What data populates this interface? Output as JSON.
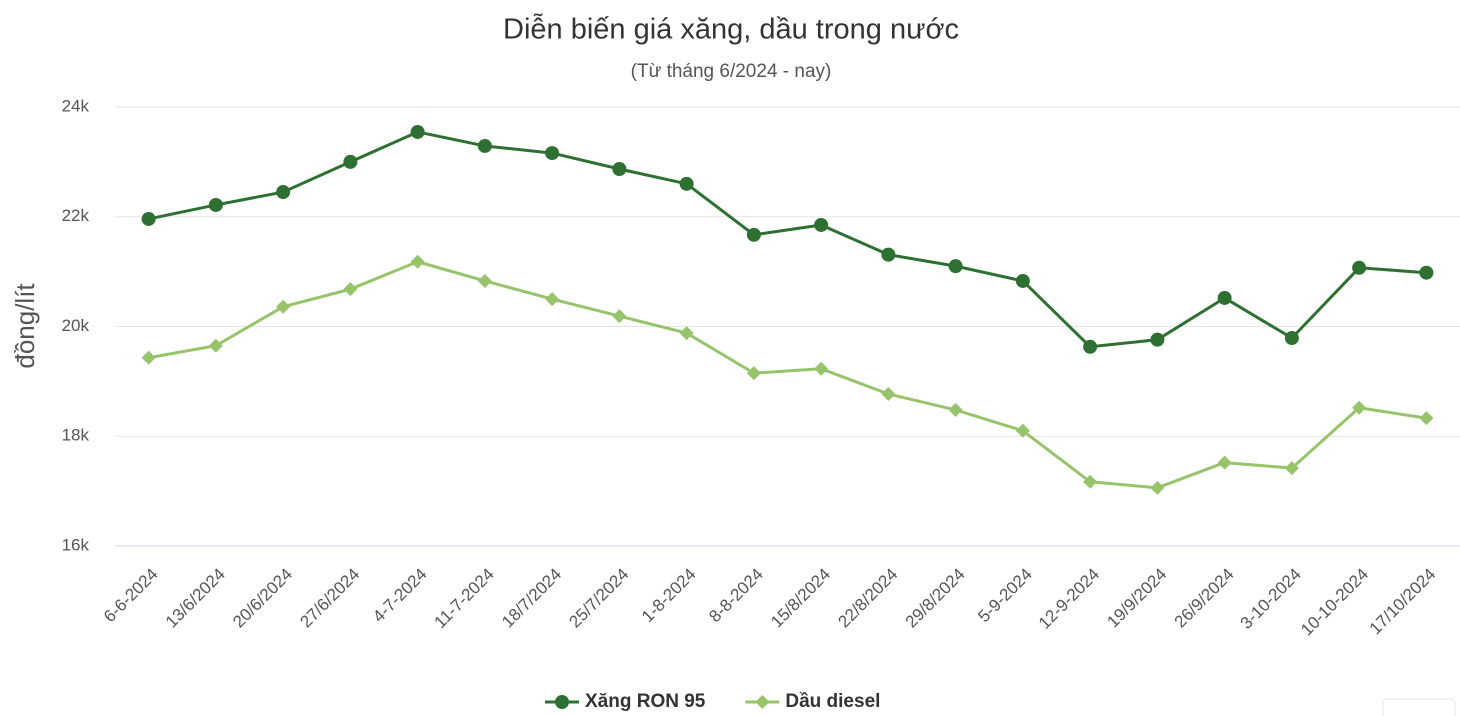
{
  "chart_data": {
    "type": "line",
    "title": "Diễn biến giá xăng, dầu trong nước",
    "subtitle": "(Từ tháng 6/2024 - nay)",
    "y_label": "đồng/lít",
    "categories": [
      "6-6-2024",
      "13/6/2024",
      "20/6/2024",
      "27/6/2024",
      "4-7-2024",
      "11-7-2024",
      "18/7/2024",
      "25/7/2024",
      "1-8-2024",
      "8-8-2024",
      "15/8/2024",
      "22/8/2024",
      "29/8/2024",
      "5-9-2024",
      "12-9-2024",
      "19/9/2024",
      "26/9/2024",
      "3-10-2024",
      "10-10-2024",
      "17/10/2024"
    ],
    "series": [
      {
        "name": "Xăng RON 95",
        "color": "#2e7032",
        "marker": "circle",
        "values": [
          21960,
          22215,
          22450,
          23000,
          23545,
          23290,
          23160,
          22870,
          22600,
          21670,
          21850,
          21310,
          21100,
          20830,
          19630,
          19760,
          20520,
          19790,
          21070,
          20980
        ]
      },
      {
        "name": "Dầu diesel",
        "color": "#97c46a",
        "marker": "diamond",
        "values": [
          19430,
          19650,
          20360,
          20680,
          21180,
          20830,
          20500,
          20190,
          19880,
          19150,
          19230,
          18770,
          18480,
          18100,
          17170,
          17060,
          17520,
          17420,
          18520,
          18330
        ]
      }
    ],
    "ylim": [
      16000,
      24000
    ],
    "yticks": [
      {
        "value": 16000,
        "label": "16k"
      },
      {
        "value": 18000,
        "label": "18k"
      },
      {
        "value": 20000,
        "label": "20k"
      },
      {
        "value": 22000,
        "label": "22k"
      },
      {
        "value": 24000,
        "label": "24k"
      }
    ],
    "grid": true,
    "legend": "bottom"
  }
}
